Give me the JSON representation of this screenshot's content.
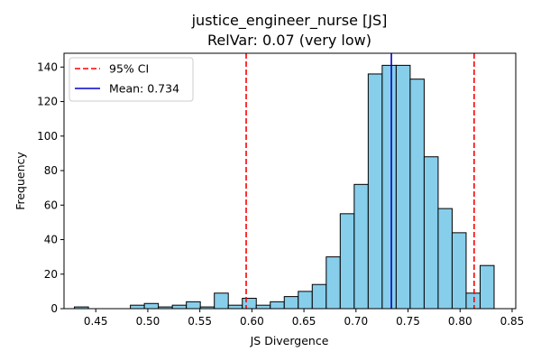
{
  "chart_data": {
    "type": "bar",
    "title": "justice_engineer_nurse [JS]",
    "subtitle": "RelVar: 0.07 (very low)",
    "xlabel": "JS Divergence",
    "ylabel": "Frequency",
    "xlim": [
      0.4195,
      0.8535
    ],
    "ylim": [
      0,
      148
    ],
    "xticks": [
      "0.45",
      "0.50",
      "0.55",
      "0.60",
      "0.65",
      "0.70",
      "0.75",
      "0.80",
      "0.85"
    ],
    "xtick_values": [
      0.45,
      0.5,
      0.55,
      0.6,
      0.65,
      0.7,
      0.75,
      0.8,
      0.85
    ],
    "yticks": [
      "0",
      "20",
      "40",
      "60",
      "80",
      "100",
      "120",
      "140"
    ],
    "ytick_values": [
      0,
      20,
      40,
      60,
      80,
      100,
      120,
      140
    ],
    "bins": {
      "start": 0.4295,
      "width": 0.01344,
      "counts": [
        1,
        0,
        0,
        0,
        2,
        3,
        1,
        2,
        4,
        1,
        9,
        2,
        6,
        2,
        4,
        7,
        10,
        14,
        30,
        55,
        72,
        136,
        141,
        141,
        133,
        88,
        58,
        44,
        9,
        25
      ]
    },
    "reference_lines": [
      {
        "name": "95% CI",
        "x": 0.5945,
        "color": "#ff0000",
        "style": "dashed"
      },
      {
        "name": "95% CI",
        "x": 0.8135,
        "color": "#ff0000",
        "style": "dashed"
      },
      {
        "name": "Mean: 0.734",
        "x": 0.734,
        "color": "#0000cc",
        "style": "solid"
      }
    ],
    "legend": {
      "placement": "top-left",
      "entries": [
        {
          "label": "95% CI",
          "color": "#ff0000",
          "style": "dashed"
        },
        {
          "label": "Mean: 0.734",
          "color": "#0000cc",
          "style": "solid"
        }
      ]
    },
    "bar_color": "#87ceeb",
    "bar_edge_color": "#000000",
    "grid": false
  }
}
